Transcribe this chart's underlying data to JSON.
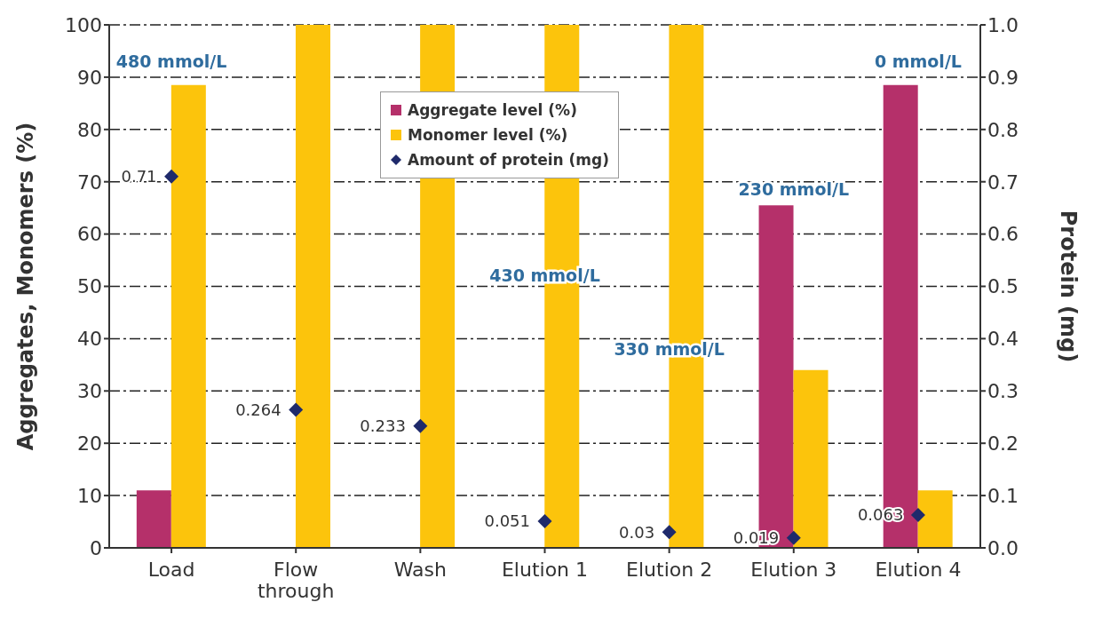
{
  "chart_data": {
    "type": "bar",
    "ylabel": "Aggregates, Monomers (%)",
    "y2label": "Protein (mg)",
    "categories": [
      "Load",
      "Flow through",
      "Wash",
      "Elution 1",
      "Elution 2",
      "Elution 3",
      "Elution 4"
    ],
    "series": [
      {
        "name": "Aggregate level (%)",
        "color": "#b5306a",
        "values": [
          11,
          0,
          0,
          0,
          0,
          65.5,
          88.5
        ]
      },
      {
        "name": "Monomer level (%)",
        "color": "#fcc40c",
        "values": [
          88.5,
          100,
          100,
          100,
          100,
          34,
          11
        ]
      },
      {
        "name": "Amount of protein (mg)",
        "type": "scatter",
        "axis": "y2",
        "marker": "diamond",
        "color": "#1f2a6b",
        "values": [
          0.71,
          0.264,
          0.233,
          0.051,
          0.03,
          0.019,
          0.063
        ],
        "value_labels": [
          "0.71",
          "0.264",
          "0.233",
          "0.051",
          "0.03",
          "0.019",
          "0.063"
        ]
      }
    ],
    "ylim": [
      0,
      100
    ],
    "yticks": [
      0,
      10,
      20,
      30,
      40,
      50,
      60,
      70,
      80,
      90,
      100
    ],
    "y2lim": [
      0,
      1
    ],
    "y2ticks": [
      {
        "value": 0,
        "label": "0.0"
      },
      0.1,
      0.2,
      0.3,
      0.4,
      0.5,
      0.6,
      0.7,
      0.8,
      0.9,
      {
        "value": 1,
        "label": "1.0"
      }
    ],
    "grid": "y",
    "legend": "top",
    "annotations": [
      "480 mmol/L",
      {
        "text": "430 mmol/L",
        "x": "Elution 1",
        "y": 52
      },
      {
        "text": "330 mmol/L",
        "x": "Elution 2",
        "y": 38
      },
      "230 mmol/L",
      "0 mmol/L"
    ]
  }
}
